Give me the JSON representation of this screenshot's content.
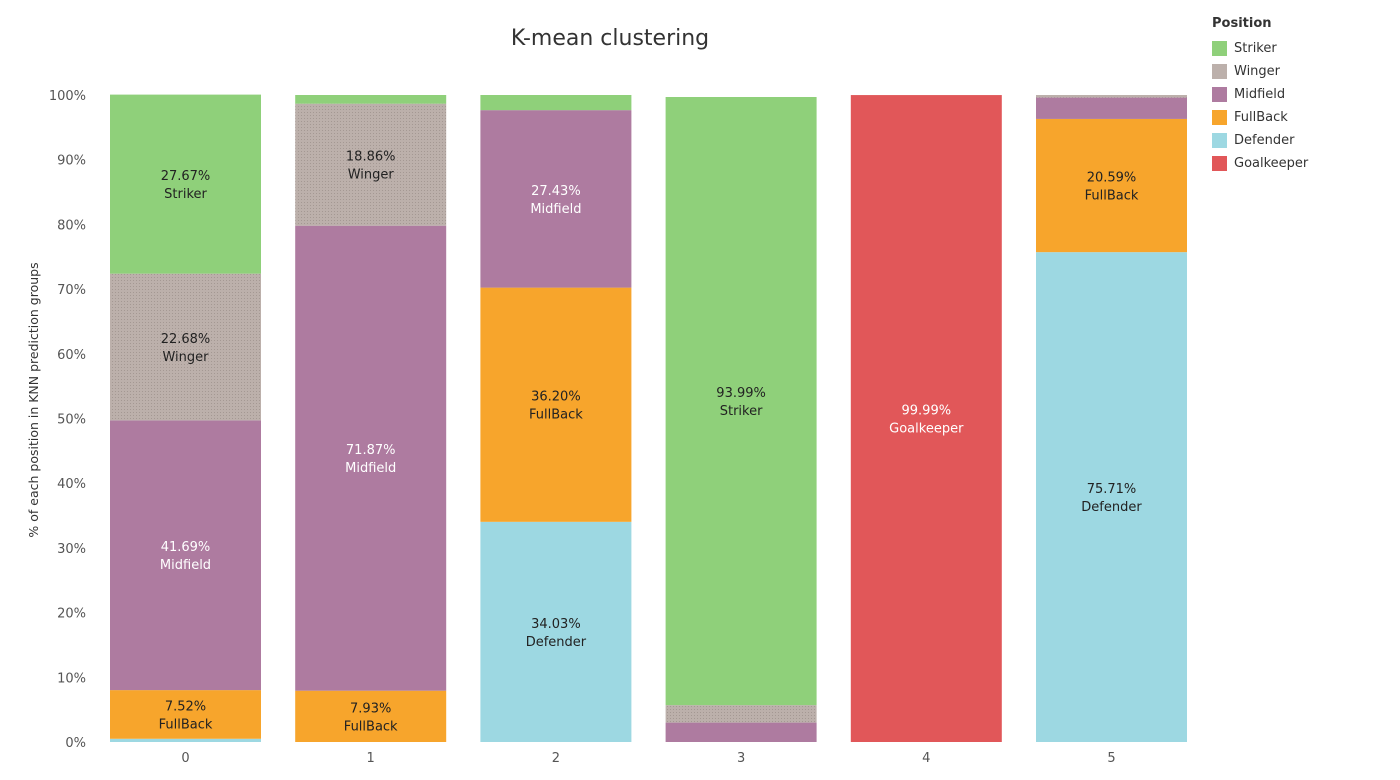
{
  "chart_data": {
    "type": "bar",
    "stacked": true,
    "title": "K-mean clustering",
    "xlabel": "",
    "ylabel": "% of each position in KNN prediction groups",
    "ylim": [
      0,
      100
    ],
    "yticks": [
      "0%",
      "10%",
      "20%",
      "30%",
      "40%",
      "50%",
      "60%",
      "70%",
      "80%",
      "90%",
      "100%"
    ],
    "categories": [
      "0",
      "1",
      "2",
      "3",
      "4",
      "5"
    ],
    "legend_title": "Position",
    "legend_position": "top-right",
    "grid": false,
    "series": [
      {
        "name": "Defender",
        "color": "#9dd8e2",
        "values": [
          0.5,
          0.0,
          34.03,
          0.0,
          0.0,
          75.71
        ]
      },
      {
        "name": "FullBack",
        "color": "#f7a52c",
        "values": [
          7.52,
          7.93,
          36.2,
          0.0,
          0.0,
          20.59
        ]
      },
      {
        "name": "Midfield",
        "color": "#ae7ba0",
        "values": [
          41.69,
          71.87,
          27.43,
          3.0,
          0.0,
          3.3
        ]
      },
      {
        "name": "Winger",
        "color": "#bcb0ab",
        "values": [
          22.68,
          18.86,
          0.0,
          2.7,
          0.0,
          0.4
        ]
      },
      {
        "name": "Striker",
        "color": "#8fd07a",
        "values": [
          27.67,
          1.34,
          2.34,
          93.99,
          0.0,
          0.0
        ]
      },
      {
        "name": "Goalkeeper",
        "color": "#e15759",
        "values": [
          0.0,
          0.0,
          0.0,
          0.0,
          99.99,
          0.0
        ]
      }
    ],
    "legend_order": [
      "Striker",
      "Winger",
      "Midfield",
      "FullBack",
      "Defender",
      "Goalkeeper"
    ],
    "data_labels": [
      {
        "category": "0",
        "series": "Striker",
        "value": "27.67%",
        "label": "Striker"
      },
      {
        "category": "0",
        "series": "Winger",
        "value": "22.68%",
        "label": "Winger"
      },
      {
        "category": "0",
        "series": "Midfield",
        "value": "41.69%",
        "label": "Midfield"
      },
      {
        "category": "0",
        "series": "FullBack",
        "value": "7.52%",
        "label": "FullBack"
      },
      {
        "category": "1",
        "series": "Winger",
        "value": "18.86%",
        "label": "Winger"
      },
      {
        "category": "1",
        "series": "Midfield",
        "value": "71.87%",
        "label": "Midfield"
      },
      {
        "category": "1",
        "series": "FullBack",
        "value": "7.93%",
        "label": "FullBack"
      },
      {
        "category": "2",
        "series": "Midfield",
        "value": "27.43%",
        "label": "Midfield"
      },
      {
        "category": "2",
        "series": "FullBack",
        "value": "36.20%",
        "label": "FullBack"
      },
      {
        "category": "2",
        "series": "Defender",
        "value": "34.03%",
        "label": "Defender"
      },
      {
        "category": "3",
        "series": "Striker",
        "value": "93.99%",
        "label": "Striker"
      },
      {
        "category": "4",
        "series": "Goalkeeper",
        "value": "99.99%",
        "label": "Goalkeeper"
      },
      {
        "category": "5",
        "series": "FullBack",
        "value": "20.59%",
        "label": "FullBack"
      },
      {
        "category": "5",
        "series": "Defender",
        "value": "75.71%",
        "label": "Defender"
      }
    ]
  }
}
